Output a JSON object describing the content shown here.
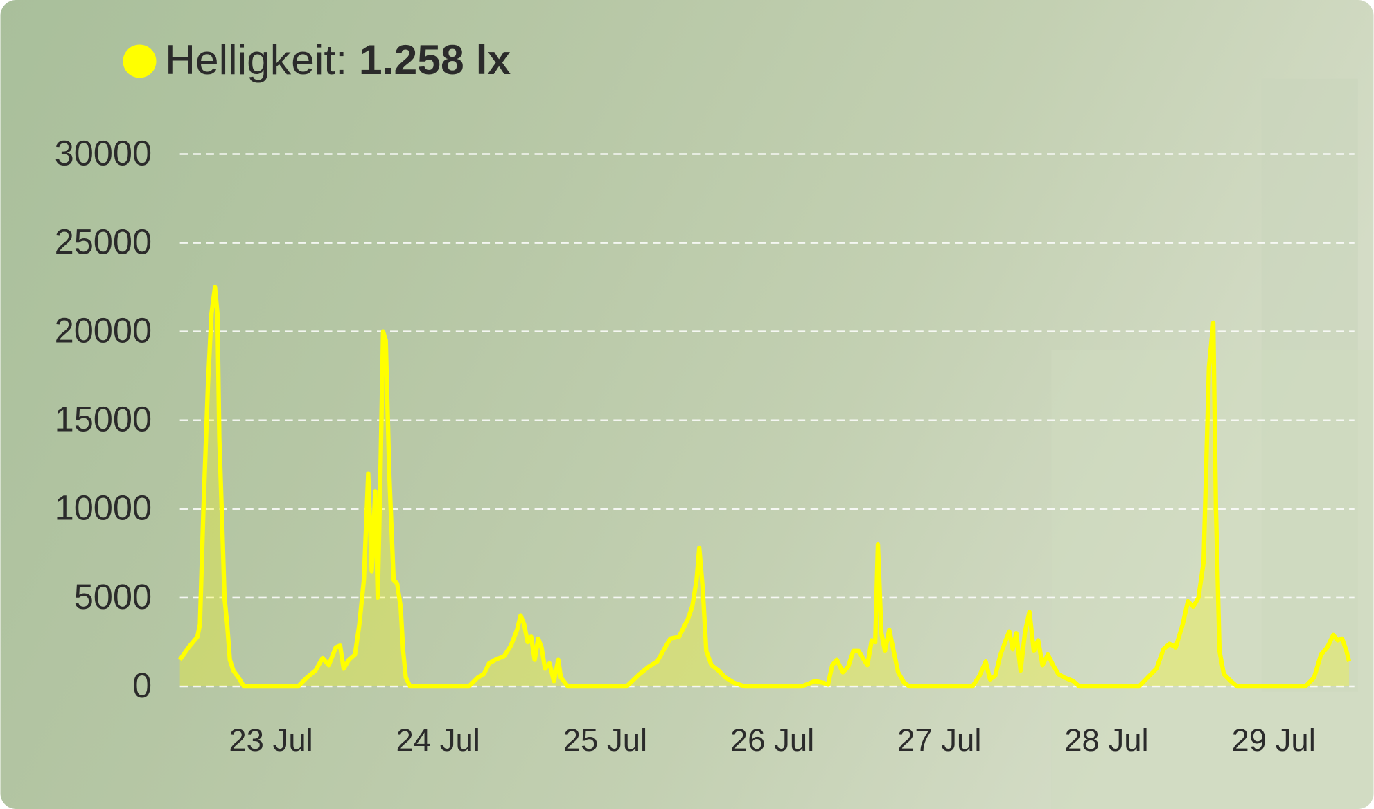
{
  "chart_data": {
    "type": "line",
    "current_value": "1.258 lx",
    "x": [
      22.455,
      22.507,
      22.56,
      22.575,
      22.596,
      22.623,
      22.644,
      22.665,
      22.68,
      22.691,
      22.707,
      22.722,
      22.738,
      22.754,
      22.775,
      22.806,
      22.838,
      23.162,
      23.215,
      23.267,
      23.309,
      23.346,
      23.388,
      23.414,
      23.435,
      23.466,
      23.503,
      23.529,
      23.556,
      23.582,
      23.603,
      23.624,
      23.639,
      23.655,
      23.671,
      23.687,
      23.708,
      23.734,
      23.755,
      23.776,
      23.791,
      23.807,
      23.833,
      24.184,
      24.237,
      24.274,
      24.305,
      24.342,
      24.394,
      24.436,
      24.473,
      24.494,
      24.515,
      24.536,
      24.557,
      24.578,
      24.599,
      24.619,
      24.64,
      24.667,
      24.693,
      24.719,
      24.735,
      24.777,
      25.128,
      25.206,
      25.259,
      25.311,
      25.353,
      25.39,
      25.442,
      25.495,
      25.521,
      25.547,
      25.563,
      25.584,
      25.605,
      25.636,
      25.678,
      25.72,
      25.772,
      25.835,
      26.176,
      26.255,
      26.307,
      26.333,
      26.359,
      26.386,
      26.422,
      26.454,
      26.485,
      26.517,
      26.548,
      26.569,
      26.595,
      26.616,
      26.632,
      26.653,
      26.674,
      26.7,
      26.726,
      26.753,
      26.789,
      26.821,
      27.198,
      27.24,
      27.277,
      27.303,
      27.334,
      27.366,
      27.397,
      27.418,
      27.439,
      27.46,
      27.486,
      27.513,
      27.539,
      27.565,
      27.591,
      27.617,
      27.649,
      27.68,
      27.712,
      27.748,
      27.801,
      27.837,
      28.194,
      28.246,
      28.299,
      28.341,
      28.377,
      28.414,
      28.456,
      28.487,
      28.519,
      28.55,
      28.581,
      28.613,
      28.639,
      28.655,
      28.676,
      28.702,
      28.744,
      28.781,
      29.19,
      29.242,
      29.284,
      29.321,
      29.357,
      29.383,
      29.41,
      29.436,
      29.452
    ],
    "series": [
      {
        "name": "Helligkeit:",
        "color": "#ffff00",
        "values": [
          1500,
          2200,
          2800,
          3500,
          10000,
          17000,
          21000,
          22500,
          21000,
          14000,
          9500,
          5000,
          3500,
          1500,
          900,
          500,
          0,
          0,
          500,
          900,
          1600,
          1200,
          2200,
          2300,
          1000,
          1500,
          1800,
          3500,
          6000,
          12000,
          6500,
          11000,
          5000,
          12000,
          20000,
          19500,
          12000,
          6000,
          5800,
          4500,
          2000,
          500,
          0,
          0,
          500,
          700,
          1300,
          1500,
          1700,
          2300,
          3200,
          4000,
          3500,
          2500,
          2800,
          1500,
          2700,
          2200,
          1000,
          1300,
          300,
          1500,
          500,
          0,
          0,
          700,
          1100,
          1400,
          2100,
          2700,
          2800,
          3800,
          4500,
          6000,
          7800,
          5500,
          2000,
          1200,
          900,
          500,
          200,
          0,
          0,
          300,
          200,
          100,
          1200,
          1500,
          800,
          1100,
          2000,
          2000,
          1500,
          1200,
          2600,
          2500,
          8000,
          3000,
          2000,
          3200,
          2000,
          800,
          200,
          0,
          0,
          600,
          1400,
          400,
          600,
          1800,
          2600,
          3100,
          2100,
          3000,
          900,
          3100,
          4200,
          2000,
          2600,
          1200,
          1800,
          1200,
          700,
          500,
          300,
          0,
          0,
          500,
          1000,
          2100,
          2400,
          2200,
          3500,
          4800,
          4500,
          5000,
          7000,
          18000,
          20500,
          10000,
          2000,
          700,
          300,
          0,
          0,
          500,
          1800,
          2200,
          2900,
          2600,
          2700,
          2000,
          1400
        ]
      }
    ],
    "xlim": [
      22.455,
      29.452
    ],
    "xticks": [
      {
        "value": 23,
        "label": "23 Jul"
      },
      {
        "value": 24,
        "label": "24 Jul"
      },
      {
        "value": 25,
        "label": "25 Jul"
      },
      {
        "value": 26,
        "label": "26 Jul"
      },
      {
        "value": 27,
        "label": "27 Jul"
      },
      {
        "value": 28,
        "label": "28 Jul"
      },
      {
        "value": 29,
        "label": "29 Jul"
      }
    ],
    "ylim": [
      0,
      30000
    ],
    "yticks": [
      0,
      5000,
      10000,
      15000,
      20000,
      25000,
      30000
    ],
    "grid": true
  }
}
